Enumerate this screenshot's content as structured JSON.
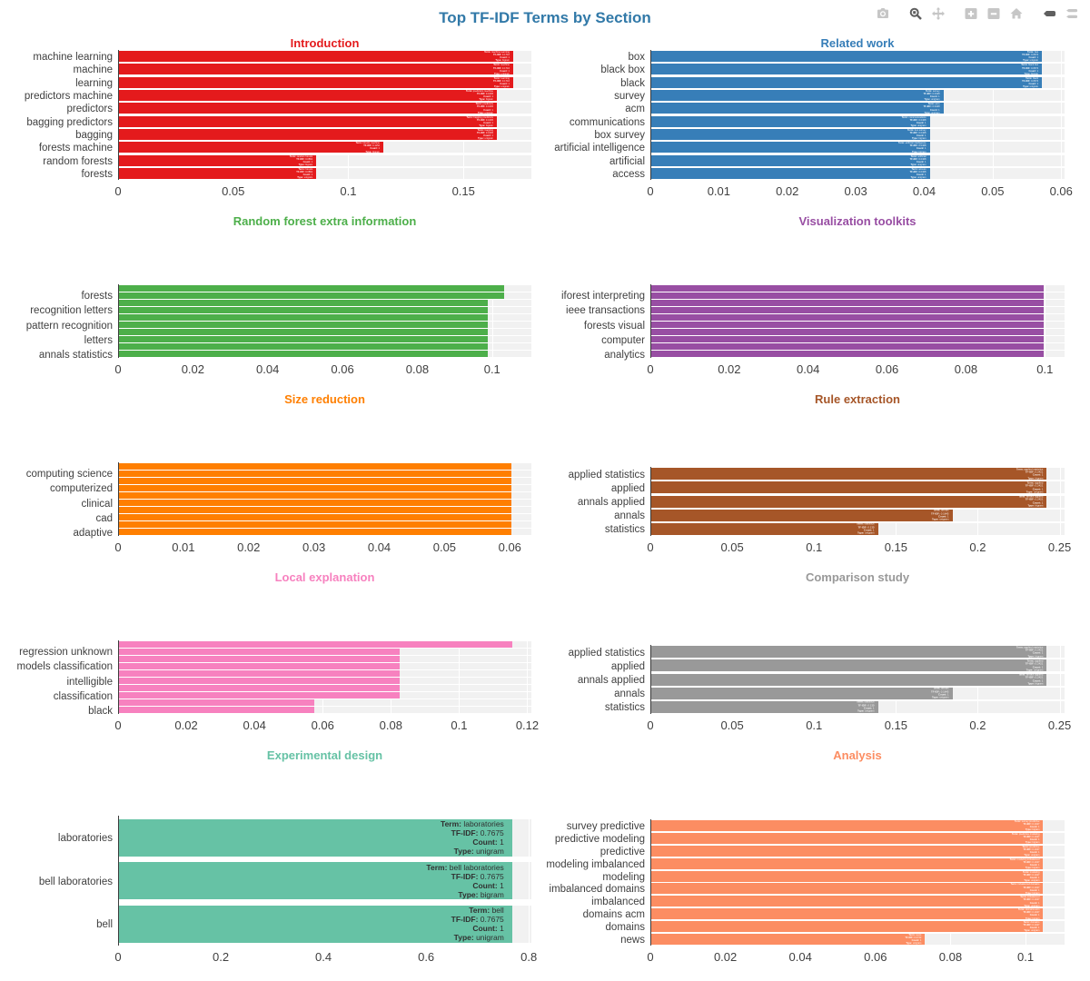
{
  "header": {
    "title": "Top TF-IDF Terms by Section"
  },
  "modebar": {
    "groups": [
      [
        "camera-icon"
      ],
      [
        "zoom-icon",
        "pan-icon"
      ],
      [
        "zoom-in-icon",
        "zoom-out-icon",
        "home-icon"
      ],
      [
        "hover-closest-icon",
        "hover-compare-icon"
      ]
    ],
    "active": [
      "zoom-icon",
      "hover-closest-icon"
    ]
  },
  "chart_data": [
    {
      "type": "bar",
      "orientation": "h",
      "title": "Introduction",
      "color": "#e41a1c",
      "xmax": 0.1795,
      "tick_values": [
        0,
        0.05,
        0.1,
        0.15
      ],
      "tick_labels": [
        "0",
        "0.05",
        "0.1",
        "0.15"
      ],
      "bars": [
        {
          "label": "machine learning",
          "value": 0.1716,
          "count": 1,
          "ngram": "bigram"
        },
        {
          "label": "machine",
          "value": 0.1716,
          "count": 1,
          "ngram": "unigram"
        },
        {
          "label": "learning",
          "value": 0.1716,
          "count": 1,
          "ngram": "unigram"
        },
        {
          "label": "predictors machine",
          "value": 0.1645,
          "count": 1,
          "ngram": "bigram"
        },
        {
          "label": "predictors",
          "value": 0.1645,
          "count": 1,
          "ngram": "unigram"
        },
        {
          "label": "bagging predictors",
          "value": 0.1645,
          "count": 1,
          "ngram": "bigram"
        },
        {
          "label": "bagging",
          "value": 0.1645,
          "count": 1,
          "ngram": "unigram"
        },
        {
          "label": "forests machine",
          "value": 0.1152,
          "count": 1,
          "ngram": "bigram"
        },
        {
          "label": "random forests",
          "value": 0.0861,
          "count": 1,
          "ngram": "bigram"
        },
        {
          "label": "forests",
          "value": 0.0861,
          "count": 1,
          "ngram": "unigram"
        }
      ]
    },
    {
      "type": "bar",
      "orientation": "h",
      "title": "Related work",
      "color": "#377eb8",
      "xmax": 0.0605,
      "tick_values": [
        0,
        0.01,
        0.02,
        0.03,
        0.04,
        0.05,
        0.06
      ],
      "tick_labels": [
        "0",
        "0.01",
        "0.02",
        "0.03",
        "0.04",
        "0.05",
        "0.06"
      ],
      "bars": [
        {
          "label": "box",
          "value": 0.0572,
          "count": 1,
          "ngram": "unigram"
        },
        {
          "label": "black box",
          "value": 0.0572,
          "count": 1,
          "ngram": "bigram"
        },
        {
          "label": "black",
          "value": 0.0572,
          "count": 1,
          "ngram": "unigram"
        },
        {
          "label": "survey",
          "value": 0.0428,
          "count": 1,
          "ngram": "unigram"
        },
        {
          "label": "acm",
          "value": 0.0428,
          "count": 1,
          "ngram": "unigram"
        },
        {
          "label": "communications",
          "value": 0.0408,
          "count": 1,
          "ngram": "unigram"
        },
        {
          "label": "box survey",
          "value": 0.0408,
          "count": 1,
          "ngram": "bigram"
        },
        {
          "label": "artificial intelligence",
          "value": 0.0408,
          "count": 1,
          "ngram": "bigram"
        },
        {
          "label": "artificial",
          "value": 0.0408,
          "count": 1,
          "ngram": "unigram"
        },
        {
          "label": "access",
          "value": 0.0408,
          "count": 1,
          "ngram": "unigram"
        }
      ]
    },
    {
      "type": "bar",
      "orientation": "h",
      "title": "Random forest extra information",
      "color": "#4daf4a",
      "xmax": 0.1105,
      "tick_values": [
        0,
        0.02,
        0.04,
        0.06,
        0.08,
        0.1
      ],
      "tick_labels": [
        "0",
        "0.02",
        "0.04",
        "0.06",
        "0.08",
        "0.1"
      ],
      "bars": [
        {
          "label": "",
          "value": 0.1031
        },
        {
          "label": "forests",
          "value": 0.1031
        },
        {
          "label": "",
          "value": 0.0988
        },
        {
          "label": "recognition letters",
          "value": 0.0988
        },
        {
          "label": "",
          "value": 0.0988
        },
        {
          "label": "pattern recognition",
          "value": 0.0988
        },
        {
          "label": "",
          "value": 0.0988
        },
        {
          "label": "letters",
          "value": 0.0988
        },
        {
          "label": "",
          "value": 0.0988
        },
        {
          "label": "annals statistics",
          "value": 0.0988
        }
      ]
    },
    {
      "type": "bar",
      "orientation": "h",
      "title": "Visualization toolkits",
      "color": "#984ea3",
      "xmax": 0.105,
      "tick_values": [
        0,
        0.02,
        0.04,
        0.06,
        0.08,
        0.1
      ],
      "tick_labels": [
        "0",
        "0.02",
        "0.04",
        "0.06",
        "0.08",
        "0.1"
      ],
      "bars": [
        {
          "label": "",
          "value": 0.0996
        },
        {
          "label": "iforest interpreting",
          "value": 0.0996
        },
        {
          "label": "",
          "value": 0.0996
        },
        {
          "label": "ieee transactions",
          "value": 0.0996
        },
        {
          "label": "",
          "value": 0.0996
        },
        {
          "label": "forests visual",
          "value": 0.0996
        },
        {
          "label": "",
          "value": 0.0996
        },
        {
          "label": "computer",
          "value": 0.0996
        },
        {
          "label": "",
          "value": 0.0996
        },
        {
          "label": "analytics",
          "value": 0.0996
        }
      ]
    },
    {
      "type": "bar",
      "orientation": "h",
      "title": "Size reduction",
      "color": "#ff7f00",
      "xmax": 0.0633,
      "tick_values": [
        0,
        0.01,
        0.02,
        0.03,
        0.04,
        0.05,
        0.06
      ],
      "tick_labels": [
        "0",
        "0.01",
        "0.02",
        "0.03",
        "0.04",
        "0.05",
        "0.06"
      ],
      "bars": [
        {
          "label": "",
          "value": 0.0602
        },
        {
          "label": "computing science",
          "value": 0.0602
        },
        {
          "label": "",
          "value": 0.0602
        },
        {
          "label": "computerized",
          "value": 0.0602
        },
        {
          "label": "",
          "value": 0.0602
        },
        {
          "label": "clinical",
          "value": 0.0602
        },
        {
          "label": "",
          "value": 0.0602
        },
        {
          "label": "cad",
          "value": 0.0602
        },
        {
          "label": "",
          "value": 0.0602
        },
        {
          "label": "adaptive",
          "value": 0.0602
        }
      ]
    },
    {
      "type": "bar",
      "orientation": "h",
      "title": "Rule extraction",
      "color": "#a65628",
      "xmax": 0.253,
      "tick_values": [
        0,
        0.05,
        0.1,
        0.15,
        0.2,
        0.25
      ],
      "tick_labels": [
        "0",
        "0.05",
        "0.1",
        "0.15",
        "0.2",
        "0.25"
      ],
      "bars": [
        {
          "label": "applied statistics",
          "value": 0.2421,
          "count": 1,
          "ngram": "bigram"
        },
        {
          "label": "applied",
          "value": 0.2421,
          "count": 1,
          "ngram": "unigram"
        },
        {
          "label": "annals applied",
          "value": 0.2421,
          "count": 1,
          "ngram": "bigram"
        },
        {
          "label": "annals",
          "value": 0.1845,
          "count": 1,
          "ngram": "unigram"
        },
        {
          "label": "statistics",
          "value": 0.139,
          "count": 1,
          "ngram": "unigram"
        }
      ]
    },
    {
      "type": "bar",
      "orientation": "h",
      "title": "Local explanation",
      "color": "#f781bf",
      "xmax": 0.1212,
      "tick_values": [
        0,
        0.02,
        0.04,
        0.06,
        0.08,
        0.1,
        0.12
      ],
      "tick_labels": [
        "0",
        "0.02",
        "0.04",
        "0.06",
        "0.08",
        "0.1",
        "0.12"
      ],
      "bars": [
        {
          "label": "",
          "value": 0.1157
        },
        {
          "label": "regression unknown",
          "value": 0.0826
        },
        {
          "label": "",
          "value": 0.0826
        },
        {
          "label": "models classification",
          "value": 0.0826
        },
        {
          "label": "",
          "value": 0.0826
        },
        {
          "label": "intelligible",
          "value": 0.0826
        },
        {
          "label": "",
          "value": 0.0826
        },
        {
          "label": "classification",
          "value": 0.0826
        },
        {
          "label": "",
          "value": 0.0576
        },
        {
          "label": "black",
          "value": 0.0576
        }
      ]
    },
    {
      "type": "bar",
      "orientation": "h",
      "title": "Comparison study",
      "color": "#999999",
      "xmax": 0.253,
      "tick_values": [
        0,
        0.05,
        0.1,
        0.15,
        0.2,
        0.25
      ],
      "tick_labels": [
        "0",
        "0.05",
        "0.1",
        "0.15",
        "0.2",
        "0.25"
      ],
      "bars": [
        {
          "label": "applied statistics",
          "value": 0.2421,
          "count": 1,
          "ngram": "bigram"
        },
        {
          "label": "applied",
          "value": 0.2421,
          "count": 1,
          "ngram": "unigram"
        },
        {
          "label": "annals applied",
          "value": 0.2421,
          "count": 1,
          "ngram": "bigram"
        },
        {
          "label": "annals",
          "value": 0.1845,
          "count": 1,
          "ngram": "unigram"
        },
        {
          "label": "statistics",
          "value": 0.139,
          "count": 1,
          "ngram": "unigram"
        }
      ]
    },
    {
      "type": "bar",
      "orientation": "h",
      "title": "Experimental design",
      "color": "#66c2a5",
      "xmax": 0.805,
      "tick_values": [
        0,
        0.2,
        0.4,
        0.6,
        0.8
      ],
      "tick_labels": [
        "0",
        "0.2",
        "0.4",
        "0.6",
        "0.8"
      ],
      "bars": [
        {
          "label": "laboratories",
          "value": 0.7675,
          "tfidf": "0.7675",
          "count": 1,
          "ngram": "unigram"
        },
        {
          "label": "bell laboratories",
          "value": 0.7675,
          "tfidf": "0.7675",
          "count": 1,
          "ngram": "bigram"
        },
        {
          "label": "bell",
          "value": 0.7675,
          "tfidf": "0.7675",
          "count": 1,
          "ngram": "unigram"
        }
      ]
    },
    {
      "type": "bar",
      "orientation": "h",
      "title": "Analysis",
      "color": "#fc8d62",
      "xmax": 0.1104,
      "tick_values": [
        0,
        0.02,
        0.04,
        0.06,
        0.08,
        0.1
      ],
      "tick_labels": [
        "0",
        "0.02",
        "0.04",
        "0.06",
        "0.08",
        "0.1"
      ],
      "bars": [
        {
          "label": "survey predictive",
          "value": 0.1047,
          "count": 1,
          "ngram": "bigram"
        },
        {
          "label": "predictive modeling",
          "value": 0.1047,
          "count": 1,
          "ngram": "bigram"
        },
        {
          "label": "predictive",
          "value": 0.1047,
          "count": 1,
          "ngram": "unigram"
        },
        {
          "label": "modeling imbalanced",
          "value": 0.1047,
          "count": 1,
          "ngram": "bigram"
        },
        {
          "label": "modeling",
          "value": 0.1047,
          "count": 1,
          "ngram": "unigram"
        },
        {
          "label": "imbalanced domains",
          "value": 0.1047,
          "count": 1,
          "ngram": "bigram"
        },
        {
          "label": "imbalanced",
          "value": 0.1047,
          "count": 1,
          "ngram": "unigram"
        },
        {
          "label": "domains acm",
          "value": 0.1047,
          "count": 1,
          "ngram": "bigram"
        },
        {
          "label": "domains",
          "value": 0.1047,
          "count": 1,
          "ngram": "unigram"
        },
        {
          "label": "news",
          "value": 0.0732,
          "count": 1,
          "ngram": "unigram"
        }
      ]
    }
  ]
}
